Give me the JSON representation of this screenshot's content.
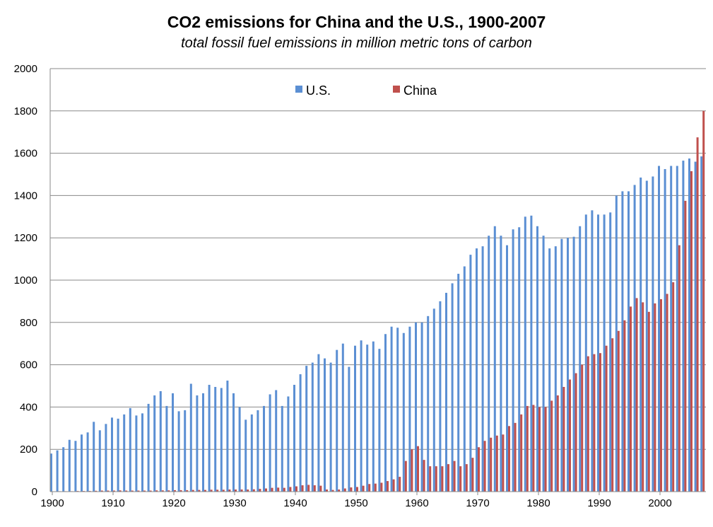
{
  "chart_data": {
    "type": "bar",
    "title": "CO2 emissions for China and the U.S., 1900-2007",
    "subtitle": "total fossil fuel emissions in million metric tons of carbon",
    "xlabel": "",
    "ylabel": "",
    "ylim": [
      0,
      2000
    ],
    "yticks": [
      0,
      200,
      400,
      600,
      800,
      1000,
      1200,
      1400,
      1600,
      1800,
      2000
    ],
    "xticks": [
      1900,
      1910,
      1920,
      1930,
      1940,
      1950,
      1960,
      1970,
      1980,
      1990,
      2000
    ],
    "grid": "horizontal",
    "legend_position": "top-center",
    "colors": {
      "us": "#5b8fd3",
      "china": "#c0504d"
    },
    "categories": [
      1900,
      1901,
      1902,
      1903,
      1904,
      1905,
      1906,
      1907,
      1908,
      1909,
      1910,
      1911,
      1912,
      1913,
      1914,
      1915,
      1916,
      1917,
      1918,
      1919,
      1920,
      1921,
      1922,
      1923,
      1924,
      1925,
      1926,
      1927,
      1928,
      1929,
      1930,
      1931,
      1932,
      1933,
      1934,
      1935,
      1936,
      1937,
      1938,
      1939,
      1940,
      1941,
      1942,
      1943,
      1944,
      1945,
      1946,
      1947,
      1948,
      1949,
      1950,
      1951,
      1952,
      1953,
      1954,
      1955,
      1956,
      1957,
      1958,
      1959,
      1960,
      1961,
      1962,
      1963,
      1964,
      1965,
      1966,
      1967,
      1968,
      1969,
      1970,
      1971,
      1972,
      1973,
      1974,
      1975,
      1976,
      1977,
      1978,
      1979,
      1980,
      1981,
      1982,
      1983,
      1984,
      1985,
      1986,
      1987,
      1988,
      1989,
      1990,
      1991,
      1992,
      1993,
      1994,
      1995,
      1996,
      1997,
      1998,
      1999,
      2000,
      2001,
      2002,
      2003,
      2004,
      2005,
      2006,
      2007
    ],
    "series": [
      {
        "name": "U.S.",
        "values": [
          180,
          195,
          210,
          245,
          240,
          270,
          280,
          330,
          290,
          320,
          350,
          345,
          365,
          395,
          360,
          370,
          415,
          455,
          475,
          405,
          465,
          380,
          385,
          510,
          455,
          465,
          505,
          495,
          490,
          525,
          465,
          400,
          340,
          365,
          385,
          405,
          460,
          480,
          405,
          450,
          505,
          555,
          595,
          610,
          650,
          630,
          610,
          670,
          700,
          590,
          690,
          715,
          695,
          710,
          675,
          745,
          780,
          775,
          750,
          780,
          800,
          800,
          830,
          865,
          900,
          940,
          985,
          1030,
          1065,
          1120,
          1150,
          1160,
          1210,
          1255,
          1210,
          1165,
          1240,
          1250,
          1300,
          1305,
          1255,
          1210,
          1150,
          1160,
          1195,
          1200,
          1205,
          1255,
          1310,
          1330,
          1310,
          1310,
          1320,
          1400,
          1420,
          1420,
          1450,
          1485,
          1470,
          1490,
          1540,
          1525,
          1540,
          1540,
          1565,
          1575,
          1560,
          1585
        ]
      },
      {
        "name": "China",
        "values": [
          1,
          2,
          2,
          2,
          3,
          3,
          3,
          4,
          5,
          5,
          5,
          6,
          5,
          5,
          5,
          5,
          5,
          6,
          6,
          6,
          7,
          7,
          7,
          8,
          8,
          8,
          9,
          9,
          9,
          10,
          10,
          10,
          10,
          11,
          13,
          15,
          18,
          19,
          18,
          22,
          25,
          30,
          32,
          30,
          28,
          10,
          8,
          10,
          15,
          20,
          22,
          28,
          36,
          38,
          42,
          50,
          58,
          70,
          145,
          200,
          215,
          150,
          120,
          120,
          120,
          130,
          145,
          120,
          130,
          160,
          210,
          240,
          255,
          265,
          270,
          310,
          325,
          365,
          405,
          410,
          400,
          400,
          430,
          455,
          495,
          530,
          560,
          600,
          640,
          650,
          655,
          690,
          725,
          760,
          810,
          875,
          915,
          895,
          850,
          890,
          910,
          935,
          990,
          1165,
          1375,
          1515,
          1675,
          1800
        ]
      }
    ]
  }
}
